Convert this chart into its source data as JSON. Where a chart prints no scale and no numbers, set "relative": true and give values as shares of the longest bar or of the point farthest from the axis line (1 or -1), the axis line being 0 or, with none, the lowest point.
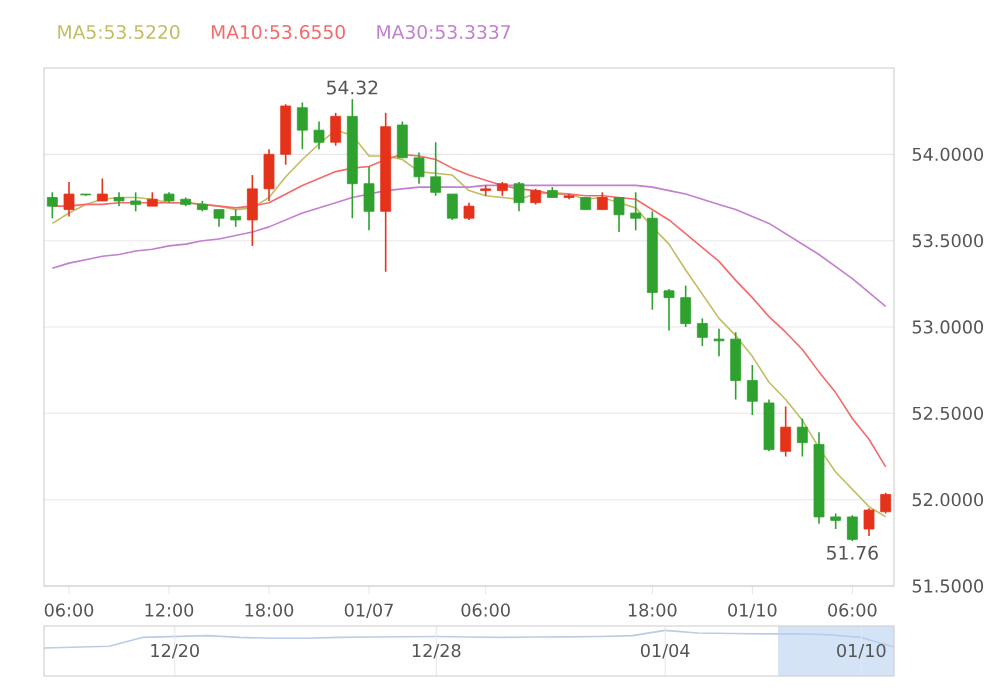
{
  "chart_data": [
    {
      "type": "candlestick",
      "categories": [
        null,
        "06:00",
        null,
        null,
        null,
        null,
        null,
        "12:00",
        null,
        null,
        null,
        null,
        null,
        "18:00",
        null,
        null,
        null,
        null,
        null,
        "01/07",
        null,
        null,
        null,
        null,
        null,
        null,
        "06:00",
        null,
        null,
        null,
        null,
        null,
        null,
        null,
        null,
        null,
        "18:00",
        null,
        null,
        null,
        null,
        null,
        "01/10",
        null,
        null,
        null,
        null,
        null,
        "06:00",
        null,
        null
      ],
      "ohlc": [
        [
          53.75,
          53.78,
          53.63,
          53.7
        ],
        [
          53.68,
          53.84,
          53.64,
          53.77
        ],
        [
          53.77,
          53.77,
          53.76,
          53.765
        ],
        [
          53.73,
          53.86,
          53.73,
          53.77
        ],
        [
          53.75,
          53.78,
          53.7,
          53.73
        ],
        [
          53.73,
          53.78,
          53.67,
          53.71
        ],
        [
          53.7,
          53.78,
          53.7,
          53.74
        ],
        [
          53.77,
          53.78,
          53.72,
          53.73
        ],
        [
          53.74,
          53.75,
          53.7,
          53.71
        ],
        [
          53.71,
          53.73,
          53.67,
          53.68
        ],
        [
          53.68,
          53.68,
          53.58,
          53.63
        ],
        [
          53.64,
          53.68,
          53.58,
          53.62
        ],
        [
          53.62,
          53.88,
          53.47,
          53.8
        ],
        [
          53.8,
          54.03,
          53.73,
          54.0
        ],
        [
          54.0,
          54.29,
          53.94,
          54.28
        ],
        [
          54.27,
          54.3,
          54.03,
          54.14
        ],
        [
          54.14,
          54.19,
          54.03,
          54.07
        ],
        [
          54.07,
          54.24,
          54.05,
          54.22
        ],
        [
          54.22,
          54.32,
          53.63,
          53.83
        ],
        [
          53.83,
          53.93,
          53.56,
          53.67
        ],
        [
          53.67,
          54.24,
          53.32,
          54.16
        ],
        [
          54.17,
          54.19,
          53.98,
          53.98
        ],
        [
          53.98,
          54.01,
          53.83,
          53.87
        ],
        [
          53.87,
          54.07,
          53.76,
          53.78
        ],
        [
          53.77,
          53.77,
          53.62,
          53.63
        ],
        [
          53.63,
          53.72,
          53.62,
          53.7
        ],
        [
          53.79,
          53.82,
          53.76,
          53.8
        ],
        [
          53.79,
          53.84,
          53.76,
          53.83
        ],
        [
          53.83,
          53.84,
          53.67,
          53.72
        ],
        [
          53.72,
          53.8,
          53.71,
          53.79
        ],
        [
          53.79,
          53.81,
          53.75,
          53.75
        ],
        [
          53.75,
          53.77,
          53.74,
          53.76
        ],
        [
          53.75,
          53.75,
          53.68,
          53.68
        ],
        [
          53.68,
          53.78,
          53.68,
          53.75
        ],
        [
          53.75,
          53.75,
          53.55,
          53.65
        ],
        [
          53.66,
          53.78,
          53.56,
          53.63
        ],
        [
          53.63,
          53.67,
          53.1,
          53.2
        ],
        [
          53.21,
          53.22,
          52.98,
          53.17
        ],
        [
          53.17,
          53.24,
          53.0,
          53.02
        ],
        [
          53.02,
          53.05,
          52.89,
          52.94
        ],
        [
          52.93,
          52.99,
          52.83,
          52.92
        ],
        [
          52.93,
          52.97,
          52.58,
          52.69
        ],
        [
          52.69,
          52.78,
          52.49,
          52.57
        ],
        [
          52.56,
          52.58,
          52.28,
          52.29
        ],
        [
          52.28,
          52.54,
          52.25,
          52.42
        ],
        [
          52.42,
          52.47,
          52.25,
          52.33
        ],
        [
          52.32,
          52.39,
          51.86,
          51.9
        ],
        [
          51.9,
          51.92,
          51.83,
          51.88
        ],
        [
          51.9,
          51.91,
          51.76,
          51.77
        ],
        [
          51.83,
          51.95,
          51.79,
          51.94
        ],
        [
          51.93,
          52.04,
          51.92,
          52.03
        ]
      ],
      "colors": [
        "#2ea12e",
        "#e5321b",
        "#2ea12e",
        "#e5321b",
        "#2ea12e",
        "#2ea12e",
        "#e5321b",
        "#2ea12e",
        "#2ea12e",
        "#2ea12e",
        "#2ea12e",
        "#2ea12e",
        "#e5321b",
        "#e5321b",
        "#e5321b",
        "#2ea12e",
        "#2ea12e",
        "#e5321b",
        "#2ea12e",
        "#2ea12e",
        "#e5321b",
        "#2ea12e",
        "#2ea12e",
        "#2ea12e",
        "#2ea12e",
        "#e5321b",
        "#e5321b",
        "#e5321b",
        "#2ea12e",
        "#e5321b",
        "#2ea12e",
        "#e5321b",
        "#2ea12e",
        "#e5321b",
        "#2ea12e",
        "#2ea12e",
        "#2ea12e",
        "#2ea12e",
        "#2ea12e",
        "#2ea12e",
        "#2ea12e",
        "#2ea12e",
        "#2ea12e",
        "#2ea12e",
        "#e5321b",
        "#2ea12e",
        "#2ea12e",
        "#2ea12e",
        "#2ea12e",
        "#e5321b",
        "#e5321b"
      ],
      "series": [
        {
          "name": "MA5:53.5220",
          "type": "line",
          "color": "#c2bd62",
          "values": [
            53.6,
            53.66,
            53.71,
            53.74,
            53.75,
            53.75,
            53.74,
            53.72,
            53.72,
            53.71,
            53.7,
            53.68,
            53.69,
            53.75,
            53.87,
            53.97,
            54.06,
            54.14,
            54.11,
            53.99,
            53.99,
            53.97,
            53.9,
            53.89,
            53.88,
            53.79,
            53.76,
            53.75,
            53.74,
            53.77,
            53.78,
            53.77,
            53.74,
            53.75,
            53.72,
            53.69,
            53.58,
            53.48,
            53.33,
            53.19,
            53.05,
            52.95,
            52.83,
            52.68,
            52.58,
            52.46,
            52.3,
            52.16,
            52.06,
            51.96,
            51.9
          ]
        },
        {
          "name": "MA10:53.6550",
          "type": "line",
          "color": "#f46a6a",
          "values": [
            53.7,
            53.7,
            53.71,
            53.71,
            53.72,
            53.72,
            53.72,
            53.72,
            53.72,
            53.71,
            53.7,
            53.69,
            53.7,
            53.72,
            53.77,
            53.82,
            53.86,
            53.9,
            53.92,
            53.93,
            53.97,
            54.0,
            53.99,
            53.97,
            53.92,
            53.88,
            53.85,
            53.82,
            53.8,
            53.79,
            53.77,
            53.77,
            53.76,
            53.76,
            53.75,
            53.74,
            53.68,
            53.62,
            53.54,
            53.46,
            53.38,
            53.27,
            53.17,
            53.06,
            52.97,
            52.87,
            52.74,
            52.62,
            52.47,
            52.35,
            52.19
          ]
        },
        {
          "name": "MA30:53.3337",
          "type": "line",
          "color": "#c27fcf",
          "values": [
            53.34,
            53.37,
            53.39,
            53.41,
            53.42,
            53.44,
            53.45,
            53.47,
            53.48,
            53.5,
            53.51,
            53.53,
            53.55,
            53.58,
            53.62,
            53.66,
            53.69,
            53.72,
            53.75,
            53.77,
            53.79,
            53.8,
            53.81,
            53.81,
            53.81,
            53.81,
            53.82,
            53.82,
            53.82,
            53.82,
            53.82,
            53.82,
            53.82,
            53.82,
            53.82,
            53.82,
            53.81,
            53.79,
            53.77,
            53.74,
            53.71,
            53.68,
            53.64,
            53.6,
            53.54,
            53.48,
            53.42,
            53.35,
            53.28,
            53.2,
            53.12
          ]
        }
      ],
      "ylim": [
        51.5,
        54.5
      ],
      "yticks": [
        {
          "value": 51.5,
          "label": "51.5000"
        },
        {
          "value": 52,
          "label": "52.0000"
        },
        {
          "value": 52.5,
          "label": "52.5000"
        },
        {
          "value": 53,
          "label": "53.0000"
        },
        {
          "value": 53.5,
          "label": "53.5000"
        },
        {
          "value": 54,
          "label": "54.0000"
        }
      ],
      "grid": "y",
      "legend": "top left",
      "annotations": [
        {
          "text": "54.32",
          "y": 54.32
        },
        {
          "text": "51.76",
          "y": 51.76
        }
      ]
    },
    {
      "type": "line",
      "relative": true,
      "categories": [
        null,
        null,
        null,
        null,
        "12/20",
        null,
        null,
        null,
        null,
        null,
        null,
        null,
        "12/28",
        null,
        null,
        null,
        null,
        null,
        null,
        "01/04",
        null,
        null,
        null,
        null,
        null,
        "01/10",
        null
      ],
      "series": [
        {
          "color": "#b9cde6",
          "values": [
            0.0,
            0.05,
            0.1,
            0.6,
            0.65,
            0.7,
            0.6,
            0.55,
            0.55,
            0.6,
            0.62,
            0.64,
            0.65,
            0.62,
            0.6,
            0.62,
            0.63,
            0.65,
            0.7,
            1.0,
            0.85,
            0.82,
            0.8,
            0.8,
            0.75,
            0.6,
            0.05
          ]
        }
      ],
      "grid": "x"
    }
  ]
}
